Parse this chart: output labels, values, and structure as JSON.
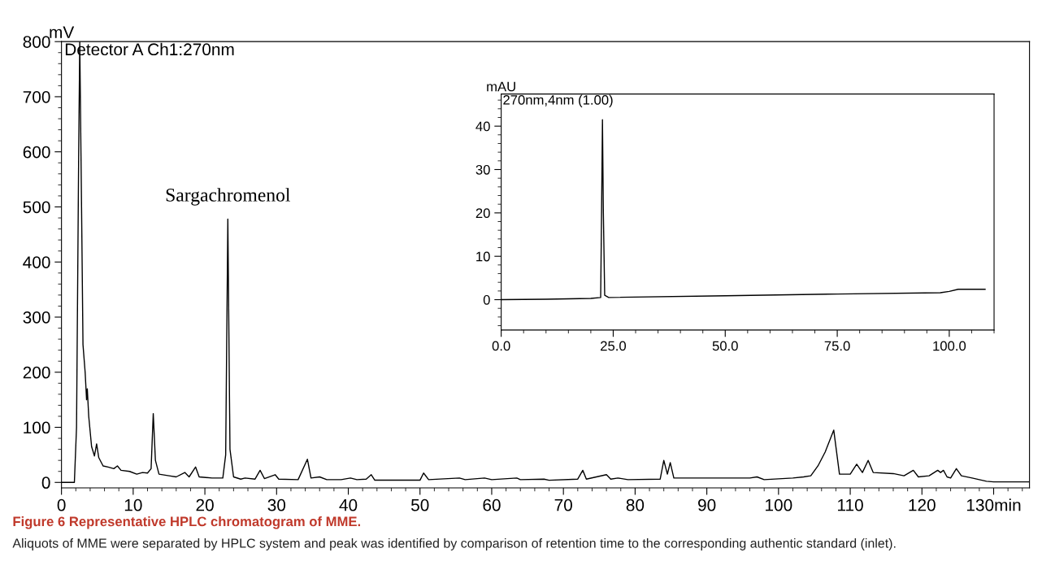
{
  "chart_data": [
    {
      "type": "line",
      "title": "Figure 6 Representative HPLC chromatogram of MME.",
      "ylabel": "mV",
      "xlim": [
        0,
        135
      ],
      "xticks": [
        0,
        10,
        20,
        30,
        40,
        50,
        60,
        70,
        80,
        90,
        100,
        110,
        120,
        {
          "value": 130,
          "label": "130min"
        }
      ],
      "ylim": [
        -10,
        800
      ],
      "yticks": [
        0,
        100,
        200,
        300,
        400,
        500,
        600,
        700,
        800
      ],
      "grid": false,
      "legend": false,
      "marker": "none",
      "line_style": "solid",
      "annotations": [
        {
          "text": "Sargachromenol",
          "x": 23.2,
          "y": 478
        },
        "Detector A Ch1:270nm",
        "Aliquots of MME were separated by HPLC system and peak was identified by comparison of retention time to the corresponding authentic standard (inlet)."
      ],
      "series": [
        {
          "color": "#000000",
          "x": [
            0,
            1.8,
            2.1,
            2.4,
            2.55,
            2.8,
            3.0,
            3.3,
            3.5,
            3.6,
            3.8,
            4.2,
            4.6,
            4.9,
            5.2,
            5.8,
            6.5,
            7.3,
            7.8,
            8.3,
            9.5,
            10.5,
            11.3,
            12,
            12.5,
            12.8,
            13.1,
            13.6,
            15,
            16,
            17.2,
            17.8,
            18.7,
            19.2,
            21,
            22.5,
            22.9,
            23.2,
            23.5,
            24,
            25,
            25.6,
            27,
            27.7,
            28.3,
            29.8,
            30.3,
            33,
            34.3,
            34.8,
            36,
            37,
            39,
            40.3,
            41.2,
            42.5,
            43.2,
            43.7,
            50,
            50.5,
            51.2,
            55.5,
            56.3,
            59,
            60,
            63.5,
            64,
            67.3,
            68,
            72,
            72.7,
            73.2,
            76,
            76.6,
            77.6,
            79,
            83.5,
            84,
            84.5,
            84.9,
            85.4,
            89,
            90.3,
            96,
            97,
            98,
            102,
            103.5,
            104.5,
            105.5,
            106.5,
            107.7,
            108.5,
            110,
            110.9,
            111.7,
            112.5,
            113.2,
            116,
            117.5,
            118.8,
            119.5,
            121,
            122.2,
            122.6,
            123,
            123.5,
            124,
            124.8,
            125.5,
            127,
            129,
            130,
            135
          ],
          "values": [
            0,
            0,
            100,
            600,
            800,
            500,
            250,
            200,
            150,
            170,
            120,
            65,
            48,
            70,
            45,
            30,
            28,
            25,
            30,
            22,
            20,
            15,
            18,
            17,
            25,
            125,
            40,
            15,
            12,
            10,
            18,
            10,
            28,
            10,
            8,
            8,
            50,
            478,
            60,
            10,
            6,
            8,
            6,
            22,
            7,
            14,
            6,
            5,
            42,
            8,
            10,
            5,
            5,
            8,
            5,
            6,
            14,
            4,
            4,
            17,
            5,
            8,
            5,
            8,
            5,
            8,
            5,
            6,
            4,
            6,
            22,
            6,
            14,
            6,
            8,
            5,
            6,
            40,
            15,
            36,
            8,
            8,
            8,
            8,
            10,
            5,
            8,
            10,
            12,
            30,
            55,
            95,
            15,
            15,
            33,
            18,
            40,
            18,
            16,
            12,
            22,
            10,
            12,
            22,
            18,
            22,
            10,
            8,
            25,
            12,
            8,
            2,
            1,
            1
          ]
        }
      ]
    },
    {
      "type": "line",
      "ylabel": "mAU",
      "xlim": [
        0,
        110
      ],
      "xticks": [
        {
          "value": 0,
          "label": "0.0"
        },
        {
          "value": 25,
          "label": "25.0"
        },
        {
          "value": 50,
          "label": "50.0"
        },
        {
          "value": 75,
          "label": "75.0"
        },
        {
          "value": 100,
          "label": "100.0"
        }
      ],
      "ylim": [
        -7,
        47.4
      ],
      "yticks": [
        0,
        10,
        20,
        30,
        40
      ],
      "grid": false,
      "legend": false,
      "marker": "none",
      "line_style": "solid",
      "annotations": [
        "270nm,4nm (1.00)"
      ],
      "series": [
        {
          "color": "#000000",
          "x": [
            0,
            10,
            20,
            22.2,
            22.4,
            22.6,
            22.8,
            23.1,
            24,
            50,
            75,
            98,
            100,
            102,
            108
          ],
          "values": [
            0,
            0.1,
            0.3,
            0.5,
            20,
            41.5,
            20,
            1,
            0.5,
            0.9,
            1.3,
            1.6,
            1.9,
            2.4,
            2.4
          ]
        }
      ]
    }
  ]
}
